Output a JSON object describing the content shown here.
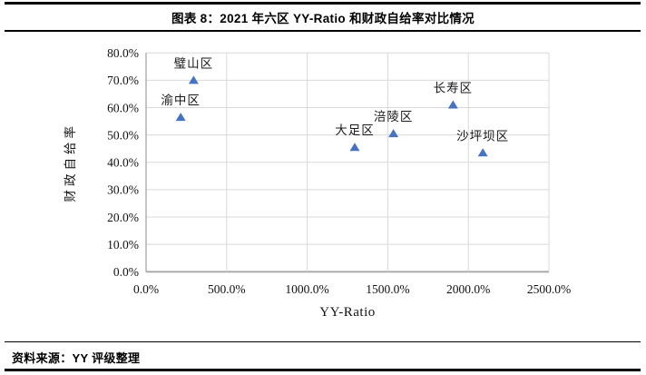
{
  "header": {
    "title": "图表 8：2021 年六区 YY-Ratio 和财政自给率对比情况"
  },
  "footer": {
    "source": "资料来源：YY 评级整理"
  },
  "chart_data": {
    "type": "scatter",
    "title": "图表 8：2021 年六区 YY-Ratio 和财政自给率对比情况",
    "xlabel": "YY-Ratio",
    "ylabel": "财政自给率",
    "xlim": [
      0,
      2500
    ],
    "ylim": [
      0,
      80
    ],
    "x_tick_values": [
      0,
      500,
      1000,
      1500,
      2000,
      2500
    ],
    "x_ticks": [
      "0.0%",
      "500.0%",
      "1000.0%",
      "1500.0%",
      "2000.0%",
      "2500.0%"
    ],
    "y_tick_values": [
      0,
      10,
      20,
      30,
      40,
      50,
      60,
      70,
      80
    ],
    "y_ticks": [
      "0.0%",
      "10.0%",
      "20.0%",
      "30.0%",
      "40.0%",
      "50.0%",
      "60.0%",
      "70.0%",
      "80.0%"
    ],
    "grid": true,
    "legend": false,
    "marker": "triangle-up",
    "marker_color": "#4472C4",
    "grid_color": "#d9d9d9",
    "axis_color": "#a6a6a6",
    "points": [
      {
        "label": "渝中区",
        "x": 215,
        "y": 56.5
      },
      {
        "label": "璧山区",
        "x": 295,
        "y": 70
      },
      {
        "label": "大足区",
        "x": 1295,
        "y": 45.5
      },
      {
        "label": "涪陵区",
        "x": 1535,
        "y": 50.5
      },
      {
        "label": "长寿区",
        "x": 1905,
        "y": 61
      },
      {
        "label": "沙坪坝区",
        "x": 2090,
        "y": 43.5
      }
    ]
  }
}
